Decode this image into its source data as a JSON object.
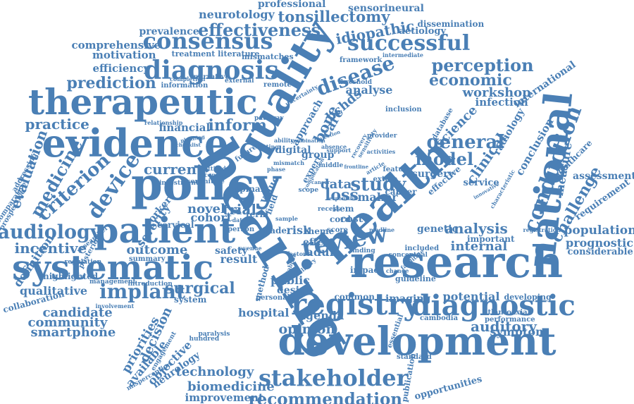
{
  "word_color": "#4a7fb5",
  "background": "#ffffff",
  "words": [
    {
      "text": "hearing"
    },
    {
      "text": "research"
    },
    {
      "text": "development"
    },
    {
      "text": "health"
    },
    {
      "text": "national"
    },
    {
      "text": "registry"
    },
    {
      "text": "diagnostic"
    },
    {
      "text": "policy"
    },
    {
      "text": "quality"
    },
    {
      "text": "patient"
    },
    {
      "text": "systematic"
    },
    {
      "text": "evidence"
    },
    {
      "text": "therapeutic"
    },
    {
      "text": "stakeholder"
    },
    {
      "text": "diagnosis"
    },
    {
      "text": "consensus"
    },
    {
      "text": "successful"
    },
    {
      "text": "review"
    },
    {
      "text": "conduction"
    },
    {
      "text": "disease"
    },
    {
      "text": "audiology"
    },
    {
      "text": "implant"
    },
    {
      "text": "general"
    },
    {
      "text": "recommendation"
    },
    {
      "text": "effectiveness"
    },
    {
      "text": "tonsillectomy"
    },
    {
      "text": "perception"
    },
    {
      "text": "economic"
    },
    {
      "text": "prediction"
    },
    {
      "text": "model"
    },
    {
      "text": "study"
    },
    {
      "text": "device"
    },
    {
      "text": "criterion"
    },
    {
      "text": "medicine"
    },
    {
      "text": "incentive"
    },
    {
      "text": "outcome"
    },
    {
      "text": "analysis"
    },
    {
      "text": "internal"
    },
    {
      "text": "surgical"
    },
    {
      "text": "candidate"
    },
    {
      "text": "community"
    },
    {
      "text": "smartphone"
    },
    {
      "text": "opinion"
    },
    {
      "text": "auditory"
    },
    {
      "text": "symptom"
    },
    {
      "text": "technology"
    },
    {
      "text": "biomedicine"
    },
    {
      "text": "improvement"
    },
    {
      "text": "challenge"
    },
    {
      "text": "population"
    },
    {
      "text": "prognostic"
    },
    {
      "text": "considerable"
    },
    {
      "text": "assessment"
    },
    {
      "text": "requirement"
    },
    {
      "text": "measure"
    },
    {
      "text": "clinical"
    },
    {
      "text": "science"
    },
    {
      "text": "workshop"
    },
    {
      "text": "infection"
    },
    {
      "text": "international"
    },
    {
      "text": "evaluation"
    },
    {
      "text": "practice"
    },
    {
      "text": "inform"
    },
    {
      "text": "financial"
    },
    {
      "text": "current"
    },
    {
      "text": "bone"
    },
    {
      "text": "bchds"
    },
    {
      "text": "care"
    },
    {
      "text": "approach"
    },
    {
      "text": "analyse"
    },
    {
      "text": "idiopathic"
    },
    {
      "text": "aetiology"
    },
    {
      "text": "prevalence"
    },
    {
      "text": "comprehensive"
    },
    {
      "text": "motivation"
    },
    {
      "text": "efficiency"
    },
    {
      "text": "neurotology"
    },
    {
      "text": "professional"
    },
    {
      "text": "sensorineural"
    },
    {
      "text": "dissemination"
    },
    {
      "text": "treatment literature"
    },
    {
      "text": "mismatches"
    },
    {
      "text": "framework"
    },
    {
      "text": "narrative"
    },
    {
      "text": "information"
    },
    {
      "text": "completion"
    },
    {
      "text": "external"
    },
    {
      "text": "remote"
    },
    {
      "text": "threshold"
    },
    {
      "text": "intermediate"
    },
    {
      "text": "decision"
    },
    {
      "text": "priorities"
    },
    {
      "text": "available"
    },
    {
      "text": "objective"
    },
    {
      "text": "neurology"
    },
    {
      "text": "qualitative"
    },
    {
      "text": "definition"
    },
    {
      "text": "collaboration"
    },
    {
      "text": "comparative"
    },
    {
      "text": "prospective"
    },
    {
      "text": "addressing"
    },
    {
      "text": "severity"
    },
    {
      "text": "worker"
    },
    {
      "text": "novel"
    },
    {
      "text": "cohort"
    },
    {
      "text": "trial"
    },
    {
      "text": "safety"
    },
    {
      "text": "result"
    },
    {
      "text": "cervical"
    },
    {
      "text": "system"
    },
    {
      "text": "hospital"
    },
    {
      "text": "agenda"
    },
    {
      "text": "design"
    },
    {
      "text": "public"
    },
    {
      "text": "adult"
    },
    {
      "text": "effect"
    },
    {
      "text": "loss"
    },
    {
      "text": "data"
    },
    {
      "text": "value"
    },
    {
      "text": "risk"
    },
    {
      "text": "maker"
    },
    {
      "text": "cancer"
    },
    {
      "text": "surgery"
    },
    {
      "text": "service"
    },
    {
      "text": "effective"
    },
    {
      "text": "genetic"
    },
    {
      "text": "important"
    },
    {
      "text": "potential"
    },
    {
      "text": "developing"
    },
    {
      "text": "imaging"
    },
    {
      "text": "guideline"
    },
    {
      "text": "performance"
    },
    {
      "text": "atlantoaxial"
    },
    {
      "text": "cambodia"
    },
    {
      "text": "standard"
    },
    {
      "text": "publication"
    },
    {
      "text": "opportunities"
    },
    {
      "text": "essential"
    },
    {
      "text": "common"
    },
    {
      "text": "impact"
    },
    {
      "text": "method"
    },
    {
      "text": "personal"
    },
    {
      "text": "theme"
    },
    {
      "text": "grade"
    },
    {
      "text": "score"
    },
    {
      "text": "item"
    },
    {
      "text": "cost"
    },
    {
      "text": "cord"
    },
    {
      "text": "spinal"
    },
    {
      "text": "digital"
    },
    {
      "text": "group"
    },
    {
      "text": "expert"
    },
    {
      "text": "inclusion"
    },
    {
      "text": "database"
    },
    {
      "text": "provider"
    },
    {
      "text": "feature"
    },
    {
      "text": "included"
    },
    {
      "text": "conceptual"
    },
    {
      "text": "registration"
    },
    {
      "text": "radiology"
    },
    {
      "text": "conclusion"
    },
    {
      "text": "healthcare"
    },
    {
      "text": "uncertainty"
    },
    {
      "text": "relationship"
    },
    {
      "text": "pathway"
    },
    {
      "text": "regulation"
    },
    {
      "text": "highlighted"
    },
    {
      "text": "management"
    },
    {
      "text": "introduction"
    },
    {
      "text": "summary"
    },
    {
      "text": "researcher"
    },
    {
      "text": "posterior"
    },
    {
      "text": "investment"
    },
    {
      "text": "committee"
    },
    {
      "text": "misperception"
    },
    {
      "text": "involvement"
    },
    {
      "text": "engagement"
    },
    {
      "text": "paralysis"
    },
    {
      "text": "hundred"
    },
    {
      "text": "dataset"
    },
    {
      "text": "term"
    },
    {
      "text": "field"
    },
    {
      "text": "person"
    },
    {
      "text": "scope"
    },
    {
      "text": "phase"
    },
    {
      "text": "middle"
    },
    {
      "text": "absence"
    },
    {
      "text": "support"
    },
    {
      "text": "sensitivity"
    },
    {
      "text": "recovery"
    },
    {
      "text": "activities"
    },
    {
      "text": "article"
    },
    {
      "text": "extera"
    },
    {
      "text": "recess"
    },
    {
      "text": "finding"
    },
    {
      "text": "change"
    },
    {
      "text": "medline"
    },
    {
      "text": "factor"
    },
    {
      "text": "delivery"
    },
    {
      "text": "establish"
    },
    {
      "text": "future"
    },
    {
      "text": "checklist"
    },
    {
      "text": "planning"
    },
    {
      "text": "setting"
    },
    {
      "text": "ability"
    },
    {
      "text": "attitude"
    },
    {
      "text": "concern"
    },
    {
      "text": "mismatch"
    },
    {
      "text": "avenue"
    },
    {
      "text": "sample"
    },
    {
      "text": "complication"
    },
    {
      "text": "cancer"
    },
    {
      "text": "responsible"
    },
    {
      "text": "combination"
    },
    {
      "text": "injection"
    },
    {
      "text": "frontline"
    },
    {
      "text": "characteristic"
    },
    {
      "text": "innovative"
    },
    {
      "text": "facilitate"
    }
  ]
}
